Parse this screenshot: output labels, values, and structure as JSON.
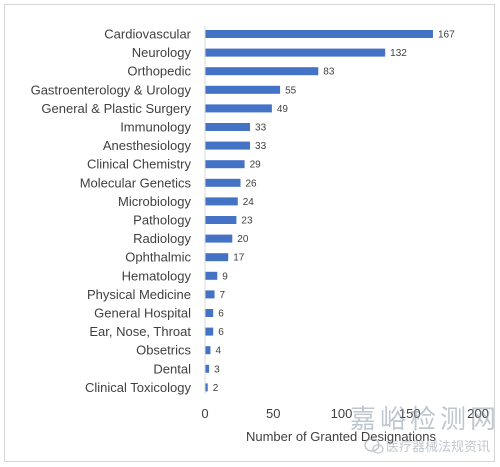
{
  "chart_data": {
    "type": "bar",
    "orientation": "horizontal",
    "categories": [
      "Cardiovascular",
      "Neurology",
      "Orthopedic",
      "Gastroenterology & Urology",
      "General & Plastic Surgery",
      "Immunology",
      "Anesthesiology",
      "Clinical Chemistry",
      "Molecular Genetics",
      "Microbiology",
      "Pathology",
      "Radiology",
      "Ophthalmic",
      "Hematology",
      "Physical Medicine",
      "General Hospital",
      "Ear, Nose, Throat",
      "Obsetrics",
      "Dental",
      "Clinical Toxicology"
    ],
    "values": [
      167,
      132,
      83,
      55,
      49,
      33,
      33,
      29,
      26,
      24,
      23,
      20,
      17,
      9,
      7,
      6,
      6,
      4,
      3,
      2
    ],
    "xlabel": "Number of Granted Designations",
    "xlim": [
      0,
      200
    ],
    "xticks": [
      "0",
      "50",
      "100",
      "150",
      "200"
    ],
    "grid": false,
    "data_labels": true,
    "colors": {
      "bar": "#4472c4",
      "text": "#404040",
      "axis": "#d9d9d9"
    }
  },
  "watermark": {
    "line1": "嘉峪检测网",
    "line2": "医疗器械法规资讯",
    "icon": "wechat-icon"
  }
}
